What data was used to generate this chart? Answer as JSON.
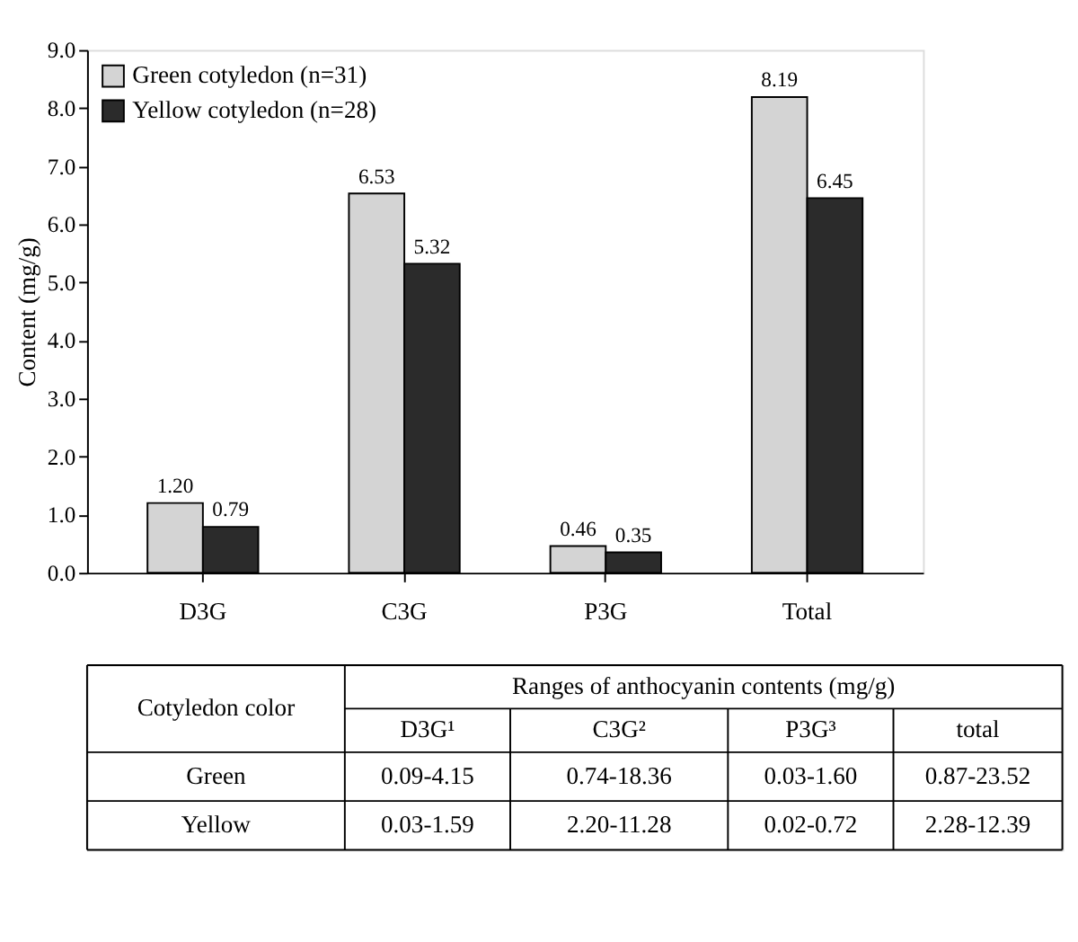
{
  "chart_data": {
    "type": "bar",
    "ylabel": "Content (mg/g)",
    "categories": [
      "D3G",
      "C3G",
      "P3G",
      "Total"
    ],
    "series": [
      {
        "name": "Green cotyledon (n=31)",
        "color": "#d4d4d4",
        "values": [
          1.2,
          6.53,
          0.46,
          8.19
        ],
        "value_labels": [
          "1.20",
          "6.53",
          "0.46",
          "8.19"
        ]
      },
      {
        "name": "Yellow cotyledon (n=28)",
        "color": "#2b2b2b",
        "values": [
          0.79,
          5.32,
          0.35,
          6.45
        ],
        "value_labels": [
          "0.79",
          "5.32",
          "0.35",
          "6.45"
        ]
      }
    ],
    "ylim": [
      0,
      9
    ],
    "yticks": [
      {
        "value": 0,
        "label": "0.0"
      },
      {
        "value": 1,
        "label": "1.0"
      },
      {
        "value": 2,
        "label": "2.0"
      },
      {
        "value": 3,
        "label": "3.0"
      },
      {
        "value": 4,
        "label": "4.0"
      },
      {
        "value": 5,
        "label": "5.0"
      },
      {
        "value": 6,
        "label": "6.0"
      },
      {
        "value": 7,
        "label": "7.0"
      },
      {
        "value": 8,
        "label": "8.0"
      },
      {
        "value": 9,
        "label": "9.0"
      }
    ],
    "grid": false,
    "legend": "top left",
    "annotations": [
      "Cotyledon color",
      "Ranges of anthocyanin contents (mg/g)",
      "D3G¹",
      "C3G²",
      "P3G³",
      "total",
      "Green",
      "0.09-4.15",
      "0.74-18.36",
      "0.03-1.60",
      "0.87-23.52",
      "Yellow",
      "0.03-1.59",
      "2.20-11.28",
      "0.02-0.72",
      "2.28-12.39"
    ]
  }
}
